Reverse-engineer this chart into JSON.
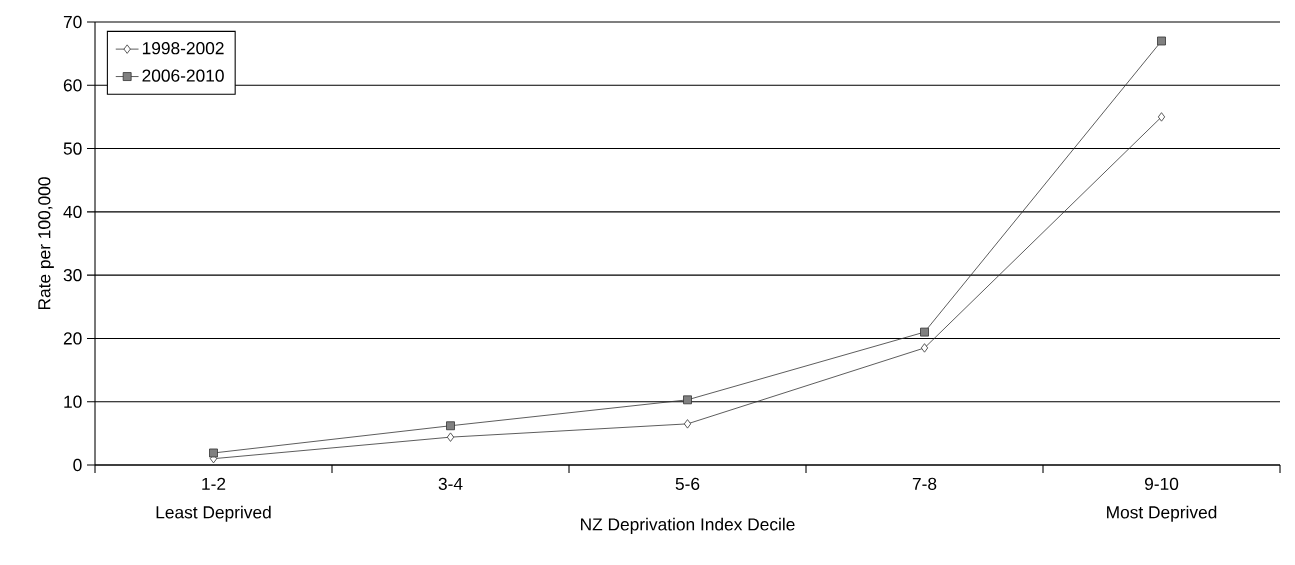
{
  "chart_data": {
    "type": "line",
    "xlabel": "NZ Deprivation Index Decile",
    "ylabel": "Rate per 100,000",
    "categories": [
      "1-2",
      "3-4",
      "5-6",
      "7-8",
      "9-10"
    ],
    "annotations": [
      "Least Deprived",
      "Most Deprived"
    ],
    "series": [
      {
        "name": "1998-2002",
        "color": "#333333",
        "marker": "diamond",
        "values": [
          1,
          4.4,
          6.5,
          18.5,
          55
        ]
      },
      {
        "name": "2006-2010",
        "color": "#333333",
        "marker": "square",
        "values": [
          1.9,
          6.2,
          10.3,
          21,
          67
        ]
      }
    ],
    "ylim": [
      0,
      70
    ],
    "yticks": [
      0,
      10,
      20,
      30,
      40,
      50,
      60,
      70
    ],
    "grid": "y",
    "legend": "top left",
    "line_style": "solid"
  }
}
